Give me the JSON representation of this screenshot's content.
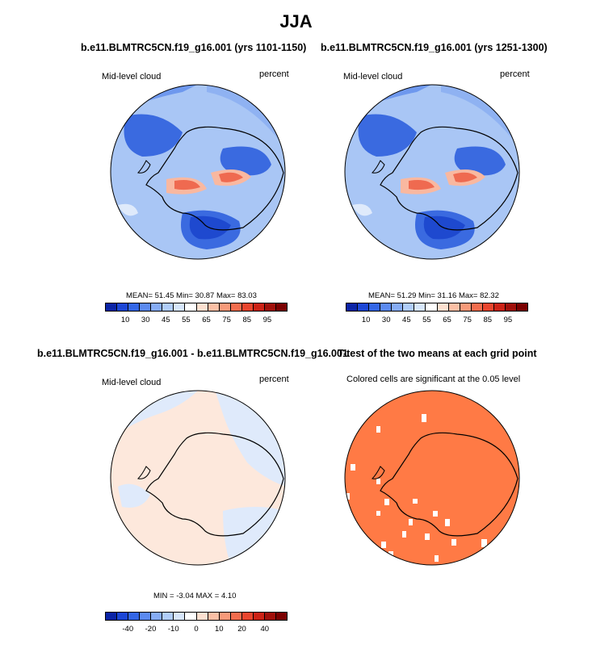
{
  "figure": {
    "title": "JJA",
    "panels": [
      {
        "id": "p1",
        "title": "b.e11.BLMTRC5CN.f19_g16.001 (yrs 1101-1150)",
        "left_label": "Mid-level cloud",
        "right_label": "percent",
        "stats": "MEAN=  51.45  Min=  30.87  Max=  83.03",
        "colorbar": {
          "ticks": [
            "10",
            "30",
            "45",
            "55",
            "65",
            "75",
            "85",
            "95"
          ],
          "colors": [
            "#0b24a6",
            "#1c46d6",
            "#3366e6",
            "#5b8af0",
            "#86acf5",
            "#b0cdfa",
            "#d7e6fb",
            "#ffffff",
            "#fde0d0",
            "#fbbfa5",
            "#f79a7a",
            "#f26d4e",
            "#e8452e",
            "#cc2216",
            "#a00f0a",
            "#7a0000"
          ]
        }
      },
      {
        "id": "p2",
        "title": "b.e11.BLMTRC5CN.f19_g16.001 (yrs 1251-1300)",
        "left_label": "Mid-level cloud",
        "right_label": "percent",
        "stats": "MEAN=  51.29  Min=  31.16  Max=  82.32",
        "colorbar": {
          "ticks": [
            "10",
            "30",
            "45",
            "55",
            "65",
            "75",
            "85",
            "95"
          ],
          "colors": [
            "#0b24a6",
            "#1c46d6",
            "#3366e6",
            "#5b8af0",
            "#86acf5",
            "#b0cdfa",
            "#d7e6fb",
            "#ffffff",
            "#fde0d0",
            "#fbbfa5",
            "#f79a7a",
            "#f26d4e",
            "#e8452e",
            "#cc2216",
            "#a00f0a",
            "#7a0000"
          ]
        }
      },
      {
        "id": "p3",
        "title": "b.e11.BLMTRC5CN.f19_g16.001 - b.e11.BLMTRC5CN.f19_g16.001",
        "left_label": "Mid-level cloud",
        "right_label": "percent",
        "stats": "MIN =  -3.04  MAX =   4.10",
        "colorbar": {
          "ticks": [
            "-40",
            "-20",
            "-10",
            "0",
            "10",
            "20",
            "40"
          ],
          "colors": [
            "#0b24a6",
            "#1c46d6",
            "#3366e6",
            "#5b8af0",
            "#86acf5",
            "#b0cdfa",
            "#d7e6fb",
            "#ffffff",
            "#fde0d0",
            "#fbbfa5",
            "#f79a7a",
            "#f26d4e",
            "#e8452e",
            "#cc2216",
            "#a00f0a",
            "#7a0000"
          ]
        }
      },
      {
        "id": "p4",
        "title": "T-test of the two means at each grid point",
        "subtitle": "Colored cells are significant at the 0.05 level"
      }
    ],
    "colors": {
      "fill_light_blue": "#a9c6f5",
      "fill_mid_blue": "#6e98ee",
      "fill_blue": "#3a6ae0",
      "fill_deep_blue": "#1e49cf",
      "fill_red": "#ef6a50",
      "fill_light_red": "#f9b8a0",
      "fill_peach": "#fde8dc",
      "fill_pale_blue": "#dfeafb",
      "fill_ttest": "#ff7a45"
    }
  }
}
